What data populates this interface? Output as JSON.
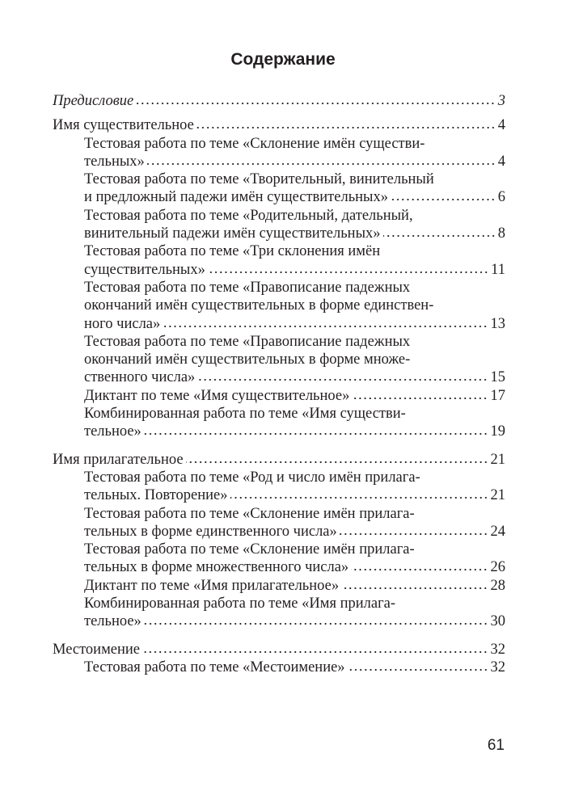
{
  "title": "Содержание",
  "sections": [
    {
      "heading": {
        "lines": [
          "Предисловие"
        ],
        "page": "3",
        "italic": true
      },
      "items": []
    },
    {
      "heading": {
        "lines": [
          "Имя существительное"
        ],
        "page": "4"
      },
      "items": [
        {
          "lines": [
            "Тестовая работа по теме «Склонение имён существи-",
            "тельных»"
          ],
          "page": "4"
        },
        {
          "lines": [
            "Тестовая работа по теме «Творительный, винительный",
            "и предложный падежи имён существительных»"
          ],
          "page": "6"
        },
        {
          "lines": [
            "Тестовая работа по теме «Родительный, дательный,",
            "винительный падежи имён существительных»"
          ],
          "page": "8"
        },
        {
          "lines": [
            "Тестовая работа по теме «Три склонения имён",
            "существительных»"
          ],
          "page": "11"
        },
        {
          "lines": [
            "Тестовая работа по теме «Правописание падежных",
            "окончаний имён существительных в форме единствен-",
            "ного числа»"
          ],
          "page": "13"
        },
        {
          "lines": [
            "Тестовая работа по теме «Правописание падежных",
            "окончаний имён существительных в форме множе-",
            "ственного числа»"
          ],
          "page": "15"
        },
        {
          "lines": [
            "Диктант по теме «Имя существительное»"
          ],
          "page": "17"
        },
        {
          "lines": [
            "Комбинированная работа по теме «Имя существи-",
            "тельное»"
          ],
          "page": "19"
        }
      ]
    },
    {
      "heading": {
        "lines": [
          "Имя прилагательное"
        ],
        "page": "21"
      },
      "items": [
        {
          "lines": [
            "Тестовая работа по теме «Род и число имён прилага-",
            "тельных. Повторение»"
          ],
          "page": "21"
        },
        {
          "lines": [
            "Тестовая работа по теме «Склонение имён прилага-",
            "тельных в форме единственного числа»"
          ],
          "page": "24"
        },
        {
          "lines": [
            "Тестовая работа по теме «Склонение имён прилага-",
            "тельных в форме множественного числа»"
          ],
          "page": "26"
        },
        {
          "lines": [
            "Диктант по теме «Имя прилагательное»"
          ],
          "page": "28"
        },
        {
          "lines": [
            "Комбинированная работа по теме «Имя прилага-",
            "тельное»"
          ],
          "page": "30"
        }
      ]
    },
    {
      "heading": {
        "lines": [
          "Местоимение"
        ],
        "page": "32"
      },
      "items": [
        {
          "lines": [
            "Тестовая работа по теме «Местоимение»"
          ],
          "page": "32"
        }
      ]
    }
  ],
  "page_number": "61"
}
